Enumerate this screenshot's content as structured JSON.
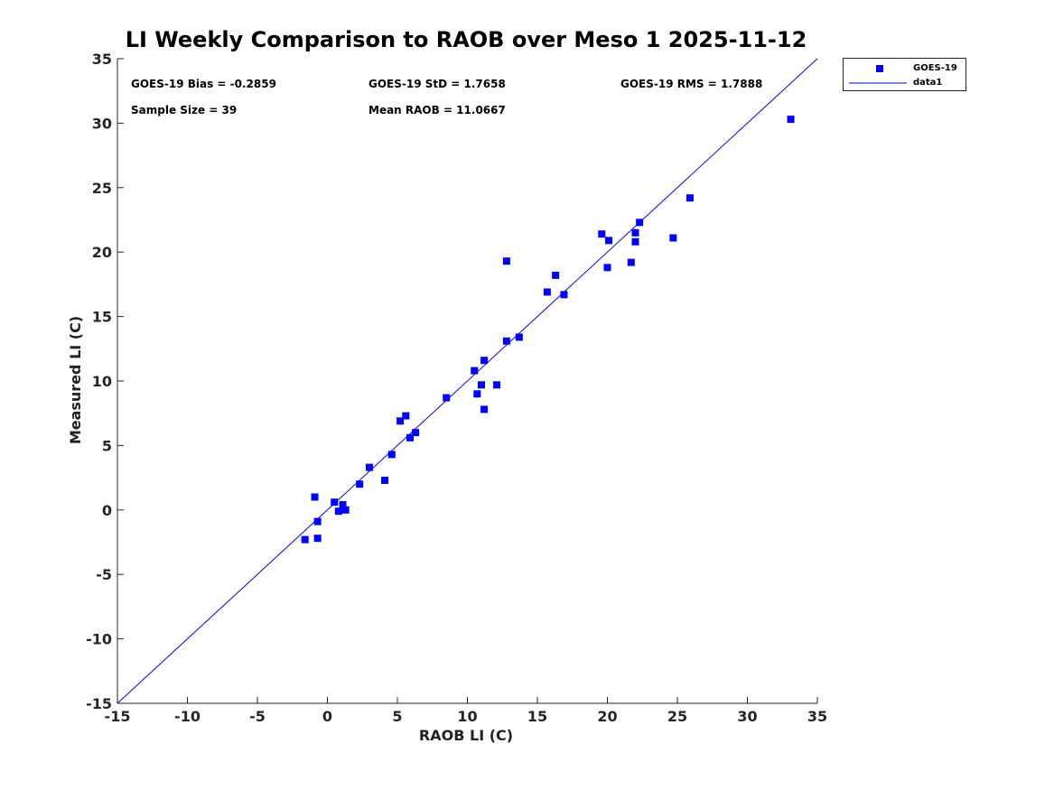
{
  "chart_data": {
    "type": "scatter",
    "title": "LI Weekly Comparison to RAOB over Meso 1 2025-11-12",
    "xlabel": "RAOB LI (C)",
    "ylabel": "Measured LI (C)",
    "xlim": [
      -15,
      35
    ],
    "ylim": [
      -15,
      35
    ],
    "xticks": [
      -15,
      -10,
      -5,
      0,
      5,
      10,
      15,
      20,
      25,
      30,
      35
    ],
    "yticks": [
      -15,
      -10,
      -5,
      0,
      5,
      10,
      15,
      20,
      25,
      30,
      35
    ],
    "grid": false,
    "legend_position": "outside-top-right",
    "annotations": [
      "GOES-19 Bias = -0.2859",
      "GOES-19 StD = 1.7658",
      "GOES-19 RMS = 1.7888",
      "Sample Size = 39",
      "Mean RAOB = 11.0667"
    ],
    "series": [
      {
        "name": "GOES-19",
        "kind": "scatter",
        "marker": "square",
        "color": "#0000ff",
        "points": [
          [
            -1.6,
            -2.3
          ],
          [
            -0.9,
            1.0
          ],
          [
            -0.7,
            -2.2
          ],
          [
            -0.7,
            -0.9
          ],
          [
            0.5,
            0.6
          ],
          [
            0.8,
            -0.1
          ],
          [
            1.1,
            0.4
          ],
          [
            1.3,
            0.0
          ],
          [
            2.3,
            2.0
          ],
          [
            3.0,
            3.3
          ],
          [
            4.1,
            2.3
          ],
          [
            4.6,
            4.3
          ],
          [
            5.2,
            6.9
          ],
          [
            5.6,
            7.3
          ],
          [
            5.9,
            5.6
          ],
          [
            6.3,
            6.0
          ],
          [
            8.5,
            8.7
          ],
          [
            10.5,
            10.8
          ],
          [
            10.7,
            9.0
          ],
          [
            11.0,
            9.7
          ],
          [
            11.2,
            11.6
          ],
          [
            11.2,
            7.8
          ],
          [
            12.1,
            9.7
          ],
          [
            12.8,
            13.1
          ],
          [
            12.8,
            19.3
          ],
          [
            13.7,
            13.4
          ],
          [
            15.7,
            16.9
          ],
          [
            16.3,
            18.2
          ],
          [
            16.9,
            16.7
          ],
          [
            19.6,
            21.4
          ],
          [
            20.0,
            18.8
          ],
          [
            20.1,
            20.9
          ],
          [
            21.7,
            19.2
          ],
          [
            22.0,
            21.5
          ],
          [
            22.0,
            20.8
          ],
          [
            22.3,
            22.3
          ],
          [
            24.7,
            21.1
          ],
          [
            25.9,
            24.2
          ],
          [
            33.1,
            30.3
          ]
        ]
      },
      {
        "name": "data1",
        "kind": "line",
        "color": "#0000ff",
        "points": [
          [
            -15,
            -15
          ],
          [
            35,
            35
          ]
        ]
      }
    ]
  }
}
